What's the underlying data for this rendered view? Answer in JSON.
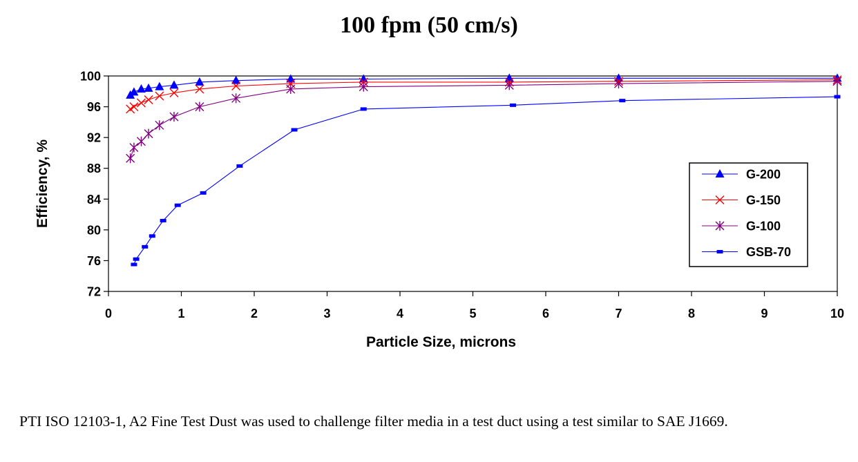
{
  "title": "100 fpm (50 cm/s)",
  "caption": "PTI ISO 12103-1, A2 Fine Test Dust was used to challenge filter media in a test duct using a test similar to SAE J1669.",
  "chart_data": {
    "type": "line",
    "title": "100 fpm (50 cm/s)",
    "xlabel": "Particle Size, microns",
    "ylabel": "Efficiency, %",
    "xlim": [
      0,
      10
    ],
    "ylim": [
      72,
      100
    ],
    "xticks": [
      0,
      1,
      2,
      3,
      4,
      5,
      6,
      7,
      8,
      9,
      10
    ],
    "yticks": [
      72,
      76,
      80,
      84,
      88,
      92,
      96,
      100
    ],
    "grid": false,
    "legend_position": "right",
    "series": [
      {
        "name": "G-200",
        "color": "#0000ff",
        "marker": "triangle",
        "x": [
          0.3,
          0.35,
          0.45,
          0.55,
          0.7,
          0.9,
          1.25,
          1.75,
          2.5,
          3.5,
          5.5,
          7,
          10
        ],
        "y": [
          97.5,
          97.9,
          98.3,
          98.4,
          98.6,
          98.8,
          99.2,
          99.4,
          99.6,
          99.6,
          99.7,
          99.7,
          99.7
        ]
      },
      {
        "name": "G-150",
        "color": "#ff0000",
        "marker": "x",
        "x": [
          0.3,
          0.35,
          0.45,
          0.55,
          0.7,
          0.9,
          1.25,
          1.75,
          2.5,
          3.5,
          5.5,
          7,
          10
        ],
        "y": [
          95.7,
          96.0,
          96.5,
          96.9,
          97.4,
          97.8,
          98.3,
          98.7,
          99.0,
          99.2,
          99.2,
          99.3,
          99.5
        ]
      },
      {
        "name": "G-100",
        "color": "#800080",
        "marker": "star",
        "x": [
          0.3,
          0.35,
          0.45,
          0.55,
          0.7,
          0.9,
          1.25,
          1.75,
          2.5,
          3.5,
          5.5,
          7,
          10
        ],
        "y": [
          89.3,
          90.7,
          91.5,
          92.5,
          93.6,
          94.7,
          96.0,
          97.1,
          98.3,
          98.6,
          98.8,
          99.0,
          99.3
        ]
      },
      {
        "name": "GSB-70",
        "color": "#0000ff",
        "marker": "dash",
        "x": [
          0.35,
          0.38,
          0.5,
          0.6,
          0.75,
          0.95,
          1.3,
          1.8,
          2.55,
          3.5,
          5.55,
          7.05,
          10
        ],
        "y": [
          75.5,
          76.2,
          77.8,
          79.2,
          81.2,
          83.2,
          84.8,
          88.3,
          93.0,
          95.7,
          96.2,
          96.8,
          97.3
        ]
      }
    ]
  }
}
